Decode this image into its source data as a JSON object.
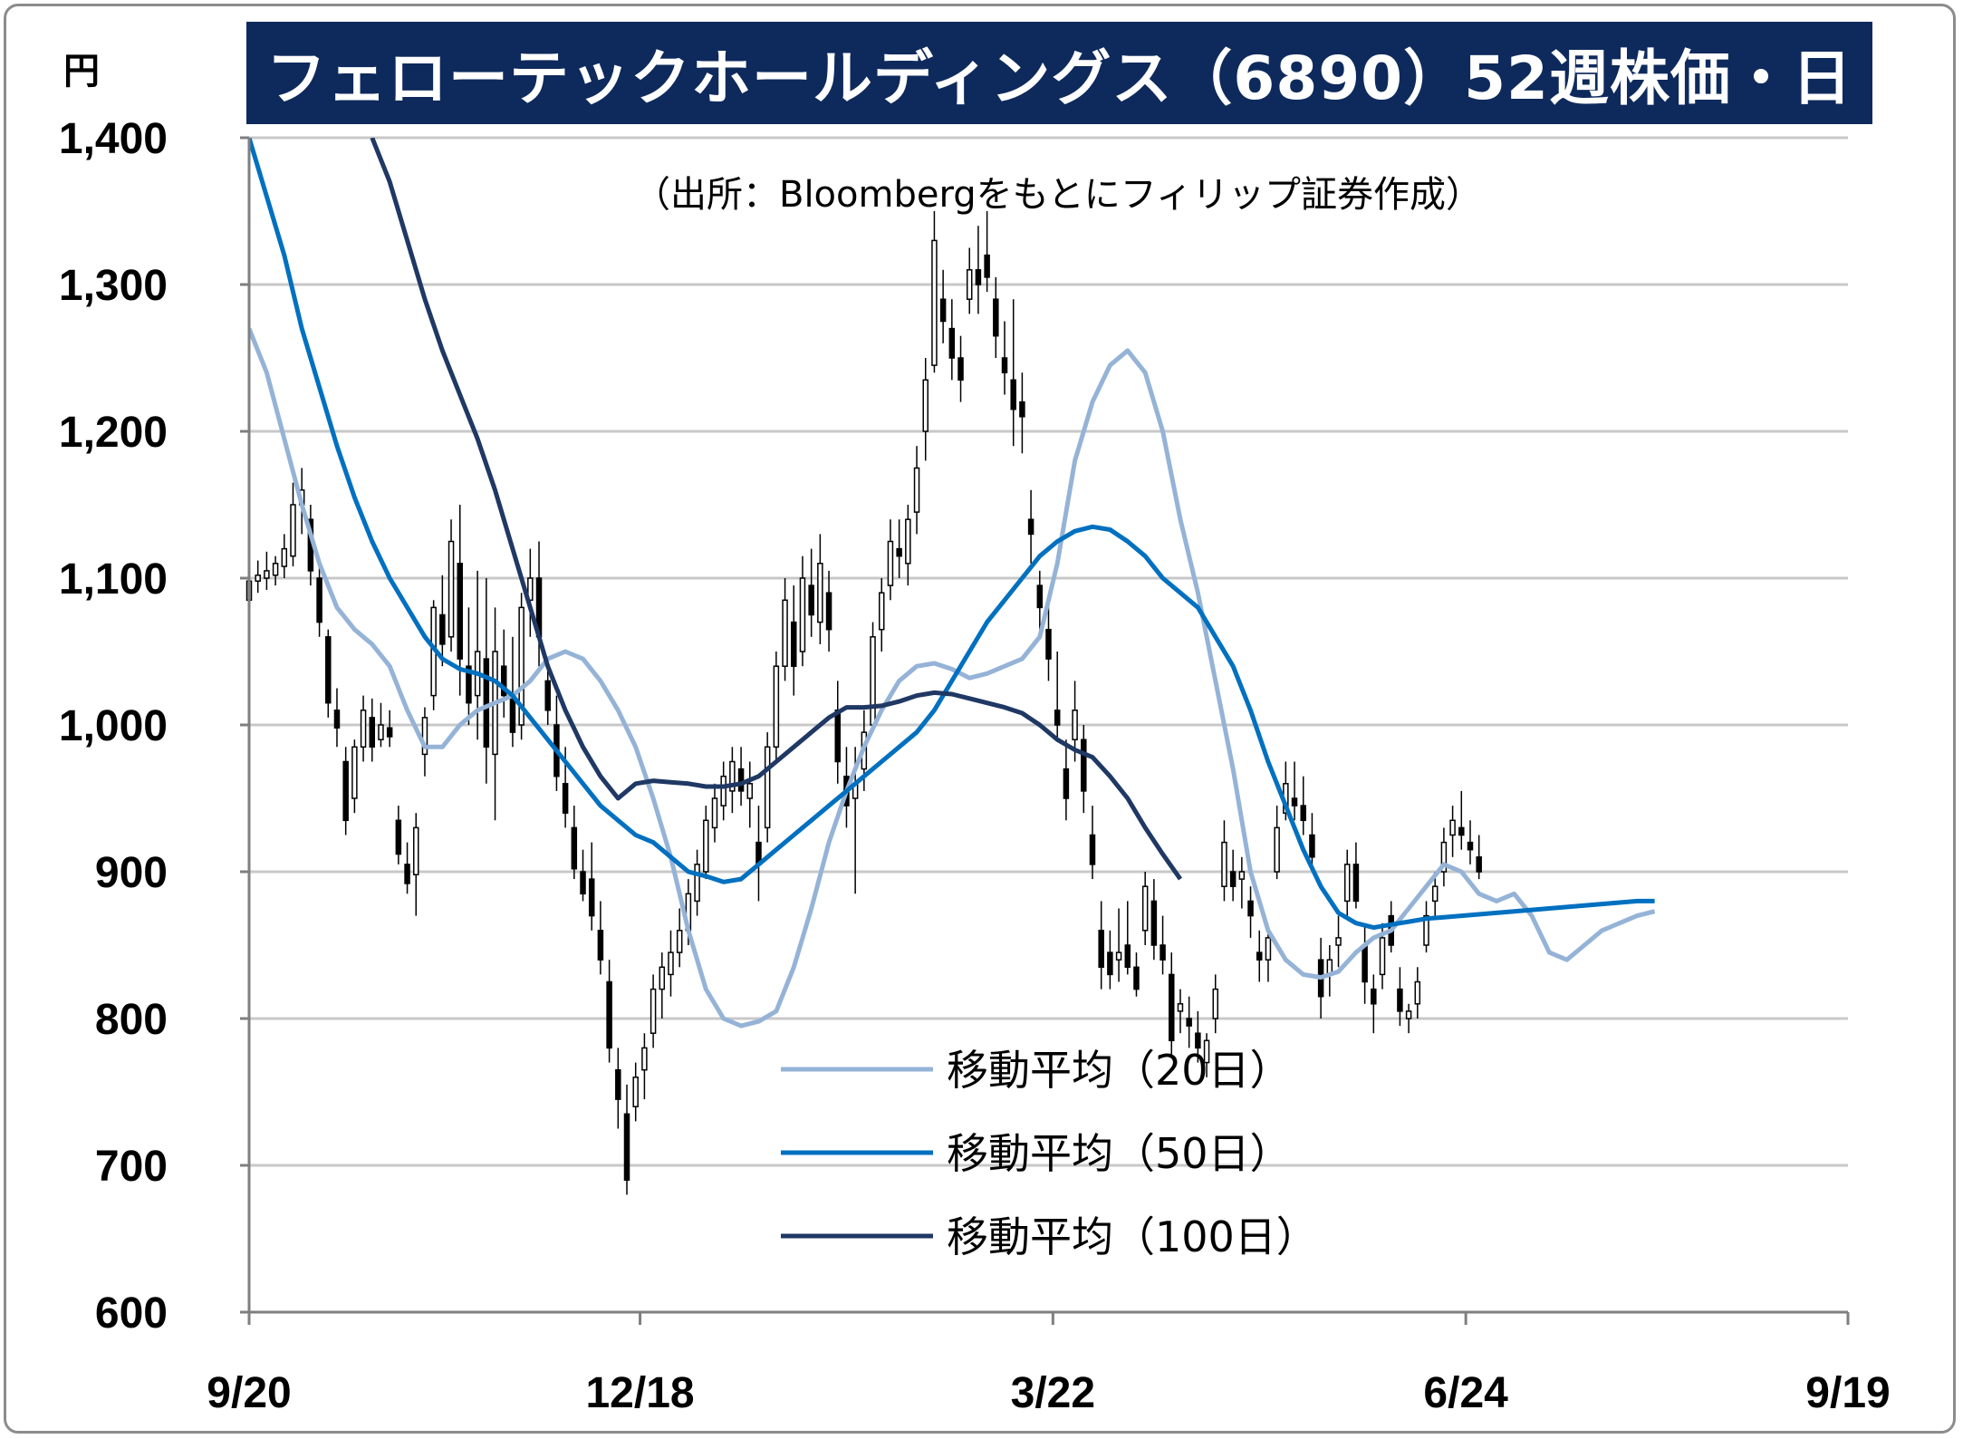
{
  "title": "フェローテックホールディングス（6890）52週株価・日",
  "source": "（出所：Bloombergをもとにフィリップ証券作成）",
  "y_unit": "円",
  "chart_data": {
    "type": "line",
    "title": "フェローテックホールディングス（6890）52週株価・日",
    "ylim": [
      600,
      1400
    ],
    "y_ticks": [
      {
        "value": 1400,
        "label": "1,400"
      },
      {
        "value": 1300,
        "label": "1,300"
      },
      {
        "value": 1200,
        "label": "1,200"
      },
      {
        "value": 1100,
        "label": "1,100"
      },
      {
        "value": 1000,
        "label": "1,000"
      },
      {
        "value": 900,
        "label": "900"
      },
      {
        "value": 800,
        "label": "800"
      },
      {
        "value": 700,
        "label": "700"
      },
      {
        "value": 600,
        "label": "600"
      }
    ],
    "x_ticks": [
      {
        "day": 0,
        "label": "9/20"
      },
      {
        "day": 89,
        "label": "12/18"
      },
      {
        "day": 183,
        "label": "3/22"
      },
      {
        "day": 277,
        "label": "6/24"
      },
      {
        "day": 364,
        "label": "9/19"
      }
    ],
    "x_range_days": [
      0,
      364
    ],
    "grid": true,
    "legend_position": "bottom-center",
    "candles": [
      [
        0,
        1085,
        1110,
        1080,
        1098
      ],
      [
        2,
        1098,
        1112,
        1090,
        1102
      ],
      [
        4,
        1100,
        1118,
        1092,
        1105
      ],
      [
        6,
        1102,
        1115,
        1095,
        1110
      ],
      [
        8,
        1108,
        1130,
        1100,
        1120
      ],
      [
        10,
        1115,
        1165,
        1108,
        1150
      ],
      [
        12,
        1150,
        1175,
        1130,
        1160
      ],
      [
        14,
        1140,
        1150,
        1095,
        1105
      ],
      [
        16,
        1100,
        1110,
        1060,
        1070
      ],
      [
        18,
        1060,
        1065,
        1005,
        1015
      ],
      [
        20,
        1010,
        1025,
        985,
        998
      ],
      [
        22,
        975,
        985,
        925,
        935
      ],
      [
        24,
        950,
        990,
        940,
        985
      ],
      [
        26,
        985,
        1020,
        975,
        1010
      ],
      [
        28,
        1005,
        1018,
        975,
        985
      ],
      [
        30,
        990,
        1015,
        985,
        1000
      ],
      [
        32,
        998,
        1010,
        985,
        992
      ],
      [
        34,
        935,
        945,
        905,
        912
      ],
      [
        36,
        905,
        920,
        885,
        892
      ],
      [
        38,
        898,
        940,
        870,
        930
      ],
      [
        40,
        980,
        1012,
        965,
        1005
      ],
      [
        42,
        1020,
        1085,
        1010,
        1080
      ],
      [
        44,
        1075,
        1102,
        1040,
        1055
      ],
      [
        46,
        1060,
        1140,
        1050,
        1125
      ],
      [
        48,
        1110,
        1150,
        1020,
        1045
      ],
      [
        50,
        1040,
        1080,
        1000,
        1015
      ],
      [
        52,
        1020,
        1105,
        990,
        1050
      ],
      [
        54,
        1045,
        1100,
        960,
        985
      ],
      [
        56,
        980,
        1080,
        935,
        1050
      ],
      [
        58,
        1040,
        1065,
        1005,
        1020
      ],
      [
        60,
        1020,
        1060,
        985,
        995
      ],
      [
        62,
        1000,
        1090,
        990,
        1080
      ],
      [
        64,
        1085,
        1120,
        1060,
        1100
      ],
      [
        66,
        1100,
        1125,
        1040,
        1060
      ],
      [
        68,
        1030,
        1045,
        1000,
        1010
      ],
      [
        70,
        1000,
        1020,
        955,
        965
      ],
      [
        72,
        960,
        985,
        930,
        940
      ],
      [
        74,
        930,
        945,
        895,
        902
      ],
      [
        76,
        900,
        915,
        880,
        885
      ],
      [
        78,
        895,
        920,
        860,
        870
      ],
      [
        80,
        860,
        880,
        830,
        840
      ],
      [
        82,
        825,
        840,
        770,
        780
      ],
      [
        84,
        765,
        780,
        725,
        745
      ],
      [
        86,
        735,
        755,
        680,
        690
      ],
      [
        88,
        740,
        770,
        730,
        760
      ],
      [
        90,
        765,
        790,
        745,
        780
      ],
      [
        92,
        790,
        830,
        780,
        820
      ],
      [
        94,
        820,
        845,
        800,
        835
      ],
      [
        96,
        830,
        860,
        815,
        845
      ],
      [
        98,
        845,
        875,
        835,
        860
      ],
      [
        100,
        860,
        895,
        850,
        885
      ],
      [
        102,
        880,
        915,
        870,
        905
      ],
      [
        104,
        900,
        945,
        895,
        935
      ],
      [
        106,
        930,
        960,
        920,
        950
      ],
      [
        108,
        945,
        975,
        935,
        965
      ],
      [
        110,
        955,
        985,
        940,
        975
      ],
      [
        112,
        970,
        985,
        945,
        955
      ],
      [
        114,
        950,
        975,
        930,
        960
      ],
      [
        116,
        920,
        945,
        880,
        905
      ],
      [
        118,
        930,
        995,
        920,
        985
      ],
      [
        120,
        985,
        1050,
        975,
        1040
      ],
      [
        122,
        1040,
        1100,
        1030,
        1085
      ],
      [
        124,
        1070,
        1095,
        1020,
        1040
      ],
      [
        126,
        1050,
        1115,
        1040,
        1100
      ],
      [
        128,
        1095,
        1120,
        1060,
        1075
      ],
      [
        130,
        1070,
        1130,
        1055,
        1110
      ],
      [
        132,
        1090,
        1105,
        1050,
        1065
      ],
      [
        134,
        1010,
        1030,
        960,
        975
      ],
      [
        136,
        965,
        985,
        930,
        945
      ],
      [
        138,
        950,
        985,
        885,
        960
      ],
      [
        140,
        970,
        1010,
        955,
        995
      ],
      [
        142,
        1000,
        1070,
        995,
        1060
      ],
      [
        144,
        1065,
        1100,
        1050,
        1090
      ],
      [
        146,
        1095,
        1140,
        1085,
        1125
      ],
      [
        148,
        1120,
        1140,
        1100,
        1115
      ],
      [
        150,
        1110,
        1150,
        1095,
        1140
      ],
      [
        152,
        1145,
        1190,
        1130,
        1175
      ],
      [
        154,
        1200,
        1250,
        1180,
        1235
      ],
      [
        156,
        1245,
        1350,
        1240,
        1330
      ],
      [
        158,
        1290,
        1310,
        1260,
        1275
      ],
      [
        160,
        1270,
        1290,
        1235,
        1250
      ],
      [
        162,
        1250,
        1265,
        1220,
        1235
      ],
      [
        164,
        1290,
        1325,
        1280,
        1310
      ],
      [
        166,
        1310,
        1340,
        1280,
        1300
      ],
      [
        168,
        1320,
        1350,
        1295,
        1305
      ],
      [
        170,
        1290,
        1305,
        1250,
        1265
      ],
      [
        172,
        1250,
        1275,
        1225,
        1240
      ],
      [
        174,
        1235,
        1290,
        1190,
        1215
      ],
      [
        176,
        1220,
        1240,
        1185,
        1210
      ],
      [
        178,
        1140,
        1160,
        1110,
        1130
      ],
      [
        180,
        1095,
        1105,
        1065,
        1080
      ],
      [
        182,
        1065,
        1085,
        1030,
        1045
      ],
      [
        184,
        1010,
        1050,
        990,
        1000
      ],
      [
        186,
        970,
        990,
        935,
        950
      ],
      [
        188,
        990,
        1030,
        975,
        1010
      ],
      [
        190,
        990,
        1000,
        940,
        955
      ],
      [
        192,
        925,
        945,
        895,
        905
      ],
      [
        194,
        860,
        880,
        820,
        835
      ],
      [
        196,
        845,
        860,
        820,
        830
      ],
      [
        198,
        840,
        875,
        825,
        845
      ],
      [
        200,
        850,
        880,
        830,
        835
      ],
      [
        202,
        835,
        845,
        815,
        820
      ],
      [
        204,
        860,
        900,
        850,
        890
      ],
      [
        206,
        880,
        895,
        840,
        850
      ],
      [
        208,
        850,
        870,
        830,
        840
      ],
      [
        210,
        830,
        845,
        775,
        785
      ],
      [
        212,
        805,
        820,
        790,
        810
      ],
      [
        214,
        800,
        815,
        780,
        795
      ],
      [
        216,
        790,
        805,
        770,
        780
      ],
      [
        218,
        770,
        790,
        760,
        785
      ],
      [
        220,
        800,
        830,
        790,
        820
      ],
      [
        222,
        890,
        935,
        880,
        920
      ],
      [
        224,
        900,
        915,
        880,
        890
      ],
      [
        226,
        895,
        910,
        875,
        900
      ],
      [
        228,
        880,
        890,
        855,
        870
      ],
      [
        230,
        845,
        860,
        825,
        840
      ],
      [
        232,
        840,
        860,
        825,
        855
      ],
      [
        234,
        900,
        945,
        895,
        930
      ],
      [
        236,
        940,
        975,
        935,
        960
      ],
      [
        238,
        950,
        975,
        935,
        945
      ],
      [
        240,
        945,
        965,
        925,
        935
      ],
      [
        242,
        925,
        940,
        900,
        910
      ],
      [
        244,
        840,
        855,
        800,
        815
      ],
      [
        246,
        830,
        850,
        815,
        840
      ],
      [
        248,
        850,
        870,
        835,
        855
      ],
      [
        250,
        880,
        915,
        870,
        905
      ],
      [
        252,
        905,
        920,
        875,
        880
      ],
      [
        254,
        850,
        865,
        810,
        825
      ],
      [
        256,
        820,
        830,
        790,
        810
      ],
      [
        258,
        830,
        865,
        820,
        855
      ],
      [
        260,
        870,
        880,
        845,
        850
      ],
      [
        262,
        820,
        835,
        795,
        805
      ],
      [
        264,
        800,
        810,
        790,
        805
      ],
      [
        266,
        810,
        835,
        800,
        825
      ],
      [
        268,
        850,
        880,
        845,
        870
      ],
      [
        270,
        880,
        900,
        870,
        890
      ],
      [
        272,
        900,
        930,
        890,
        920
      ],
      [
        274,
        925,
        945,
        910,
        935
      ],
      [
        276,
        930,
        955,
        915,
        925
      ],
      [
        278,
        920,
        935,
        905,
        915
      ],
      [
        280,
        910,
        925,
        895,
        900
      ]
    ],
    "series": [
      {
        "name": "移動平均（20日）",
        "color": "#95b3d7",
        "days_step": 4,
        "start_day": 0,
        "values": [
          1270,
          1240,
          1195,
          1150,
          1110,
          1080,
          1065,
          1055,
          1040,
          1010,
          985,
          985,
          1000,
          1010,
          1015,
          1020,
          1030,
          1045,
          1050,
          1045,
          1030,
          1010,
          985,
          950,
          910,
          860,
          820,
          800,
          795,
          798,
          805,
          835,
          875,
          920,
          955,
          985,
          1010,
          1030,
          1040,
          1042,
          1038,
          1032,
          1035,
          1040,
          1045,
          1060,
          1110,
          1180,
          1220,
          1245,
          1255,
          1240,
          1200,
          1140,
          1090,
          1030,
          970,
          900,
          860,
          840,
          830,
          828,
          832,
          845,
          855,
          860,
          875,
          890,
          905,
          900,
          885,
          880,
          885,
          870,
          845,
          840,
          850,
          860,
          865,
          870,
          873
        ]
      },
      {
        "name": "移動平均（50日）",
        "color": "#0070c0",
        "days_step": 4,
        "start_day": 0,
        "values": [
          1400,
          1360,
          1320,
          1270,
          1230,
          1190,
          1155,
          1125,
          1100,
          1080,
          1060,
          1045,
          1038,
          1035,
          1030,
          1020,
          1005,
          990,
          975,
          960,
          945,
          935,
          925,
          920,
          910,
          900,
          897,
          893,
          895,
          905,
          915,
          925,
          935,
          945,
          955,
          965,
          975,
          985,
          995,
          1010,
          1030,
          1050,
          1070,
          1085,
          1100,
          1115,
          1125,
          1132,
          1135,
          1133,
          1125,
          1115,
          1100,
          1090,
          1080,
          1060,
          1040,
          1010,
          975,
          945,
          915,
          890,
          872,
          865,
          862,
          864,
          866,
          868,
          869,
          870,
          871,
          872,
          873,
          874,
          875,
          876,
          877,
          878,
          879,
          880,
          880
        ]
      },
      {
        "name": "移動平均（100日）",
        "color": "#1f3864",
        "days_step": 4,
        "start_day": 28,
        "values": [
          1400,
          1370,
          1330,
          1290,
          1255,
          1225,
          1195,
          1160,
          1120,
          1080,
          1040,
          1010,
          985,
          965,
          950,
          960,
          962,
          961,
          960,
          958,
          958,
          960,
          965,
          975,
          985,
          995,
          1005,
          1012,
          1012,
          1013,
          1016,
          1020,
          1022,
          1021,
          1018,
          1015,
          1012,
          1008,
          1000,
          990,
          983,
          978,
          965,
          950,
          930,
          912,
          895
        ]
      }
    ]
  },
  "legend": [
    {
      "label": "移動平均（20日）",
      "color": "#95b3d7"
    },
    {
      "label": "移動平均（50日）",
      "color": "#0070c0"
    },
    {
      "label": "移動平均（100日）",
      "color": "#1f3864"
    }
  ]
}
